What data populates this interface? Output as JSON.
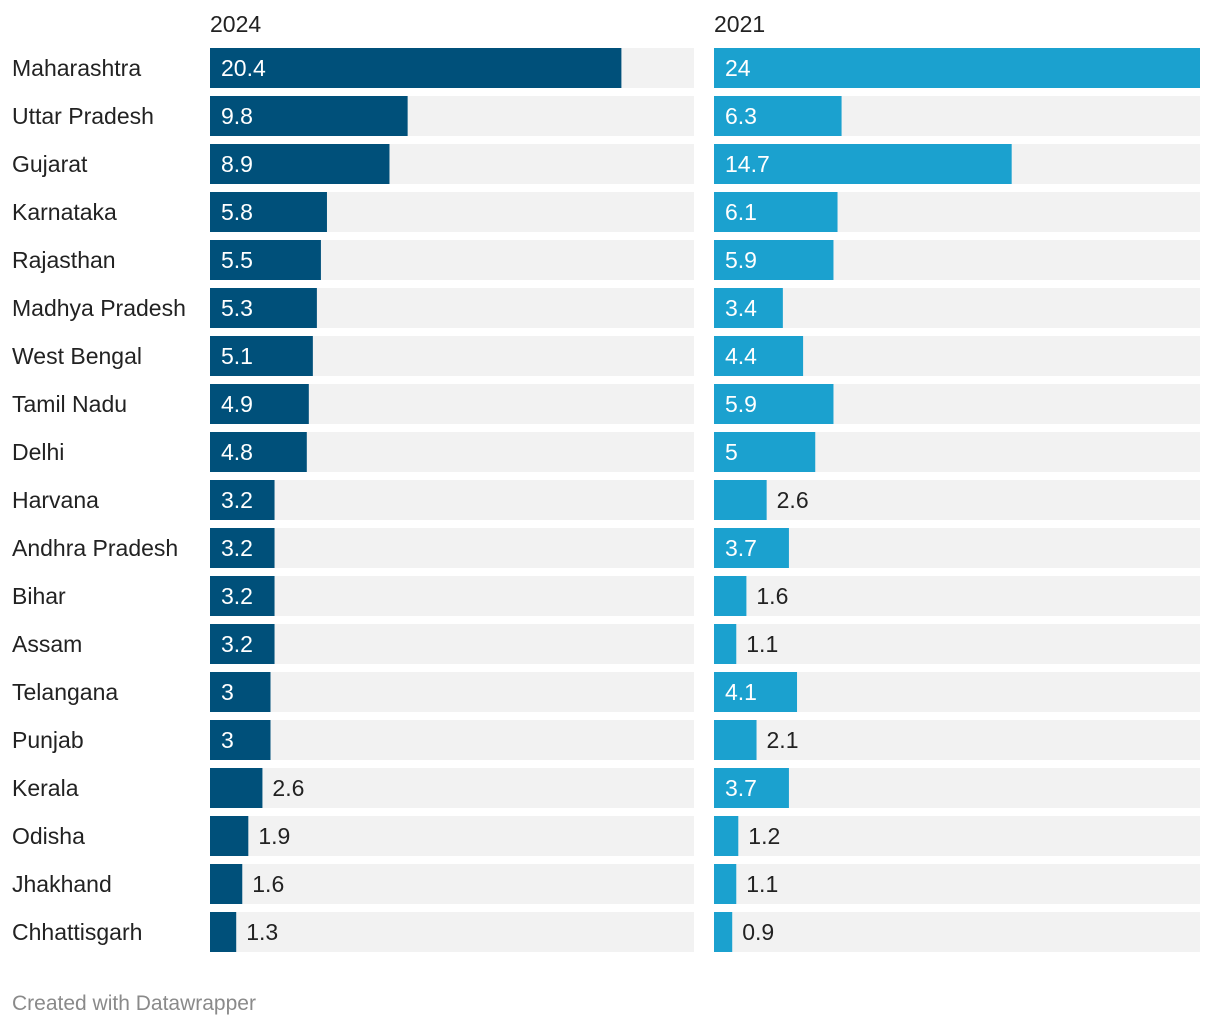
{
  "chart_data": {
    "type": "bar",
    "orientation": "horizontal",
    "layout": "small-multiples",
    "categories": [
      "Maharashtra",
      "Uttar Pradesh",
      "Gujarat",
      "Karnataka",
      "Rajasthan",
      "Madhya Pradesh",
      "West Bengal",
      "Tamil Nadu",
      "Delhi",
      "Harvana",
      "Andhra Pradesh",
      "Bihar",
      "Assam",
      "Telangana",
      "Punjab",
      "Kerala",
      "Odisha",
      "Jhakhand",
      "Chhattisgarh"
    ],
    "series": [
      {
        "name": "2024",
        "color": "#00507a",
        "xlim": [
          0,
          24
        ],
        "values": [
          20.4,
          9.8,
          8.9,
          5.8,
          5.5,
          5.3,
          5.1,
          4.9,
          4.8,
          3.2,
          3.2,
          3.2,
          3.2,
          3,
          3,
          2.6,
          1.9,
          1.6,
          1.3
        ]
      },
      {
        "name": "2021",
        "color": "#1ba1cf",
        "xlim": [
          0,
          24
        ],
        "values": [
          24,
          6.3,
          14.7,
          6.1,
          5.9,
          3.4,
          4.4,
          5.9,
          5,
          2.6,
          3.7,
          1.6,
          1.1,
          4.1,
          2.1,
          3.7,
          1.2,
          1.1,
          0.9
        ]
      }
    ],
    "track_color": "#f2f2f2",
    "title": "",
    "xlabel": "",
    "ylabel": "",
    "grid": false
  },
  "footer": {
    "credit": "Created with Datawrapper"
  }
}
